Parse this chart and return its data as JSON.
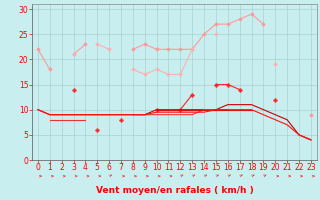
{
  "x": [
    0,
    1,
    2,
    3,
    4,
    5,
    6,
    7,
    8,
    9,
    10,
    11,
    12,
    13,
    14,
    15,
    16,
    17,
    18,
    19,
    20,
    21,
    22,
    23
  ],
  "lines": [
    {
      "name": "light_pink_diamond_top",
      "color": "#FF9999",
      "lw": 0.8,
      "marker": "D",
      "ms": 1.8,
      "values": [
        22,
        18,
        null,
        21,
        23,
        null,
        null,
        null,
        22,
        23,
        22,
        22,
        22,
        22,
        25,
        27,
        27,
        28,
        29,
        27,
        null,
        null,
        null,
        9
      ]
    },
    {
      "name": "pink_diamond_second",
      "color": "#FFB0B0",
      "lw": 0.8,
      "marker": "D",
      "ms": 1.8,
      "values": [
        null,
        null,
        null,
        21,
        null,
        23,
        22,
        null,
        18,
        17,
        18,
        17,
        17,
        22,
        null,
        25,
        null,
        null,
        null,
        null,
        19,
        null,
        null,
        null
      ]
    },
    {
      "name": "red_cross_mid",
      "color": "#FF2222",
      "lw": 0.8,
      "marker": "P",
      "ms": 2.5,
      "values": [
        null,
        null,
        null,
        14,
        null,
        6,
        null,
        8,
        null,
        null,
        10,
        null,
        10,
        13,
        null,
        15,
        15,
        14,
        null,
        null,
        12,
        null,
        null,
        null
      ]
    },
    {
      "name": "dark_red_line1",
      "color": "#CC0000",
      "lw": 0.8,
      "marker": null,
      "ms": 0,
      "values": [
        10,
        9,
        9,
        9,
        9,
        9,
        9,
        9,
        9,
        9,
        10,
        10,
        10,
        10,
        10,
        10,
        11,
        11,
        11,
        10,
        9,
        8,
        5,
        4
      ]
    },
    {
      "name": "red_line2",
      "color": "#EE3333",
      "lw": 0.8,
      "marker": null,
      "ms": 0,
      "values": [
        null,
        8,
        8,
        8,
        8,
        null,
        null,
        null,
        9,
        9,
        9,
        9,
        9,
        9,
        10,
        10,
        10,
        null,
        null,
        null,
        null,
        null,
        5,
        4
      ]
    },
    {
      "name": "red_line3_flat",
      "color": "#DD1111",
      "lw": 0.8,
      "marker": null,
      "ms": 0,
      "values": [
        null,
        null,
        null,
        null,
        null,
        null,
        null,
        null,
        null,
        null,
        10,
        10,
        10,
        10,
        10,
        10,
        10,
        10,
        10,
        null,
        null,
        null,
        null,
        null
      ]
    },
    {
      "name": "red_declining",
      "color": "#FF1111",
      "lw": 0.8,
      "marker": null,
      "ms": 0,
      "values": [
        10,
        9,
        9,
        9,
        9,
        9,
        9,
        9,
        9,
        9,
        9.5,
        9.5,
        9.5,
        9.5,
        9.5,
        10,
        10,
        10,
        10,
        9,
        8,
        7,
        5,
        4
      ]
    }
  ],
  "arrows": {
    "color": "#FF3333",
    "y_data": -3.2,
    "angles": [
      0,
      0,
      0,
      0,
      0,
      0,
      45,
      0,
      0,
      0,
      0,
      0,
      45,
      45,
      45,
      45,
      45,
      45,
      45,
      45,
      0,
      0,
      0,
      0
    ]
  },
  "xlabel": "Vent moyen/en rafales ( km/h )",
  "xlim": [
    -0.5,
    23.5
  ],
  "ylim": [
    0,
    31
  ],
  "yticks": [
    0,
    5,
    10,
    15,
    20,
    25,
    30
  ],
  "xticks": [
    0,
    1,
    2,
    3,
    4,
    5,
    6,
    7,
    8,
    9,
    10,
    11,
    12,
    13,
    14,
    15,
    16,
    17,
    18,
    19,
    20,
    21,
    22,
    23
  ],
  "bg_color": "#C8EEF0",
  "grid_color": "#A0CCCC",
  "label_color": "#FF0000",
  "tick_labelsize": 5.5,
  "xlabel_fontsize": 6.5
}
